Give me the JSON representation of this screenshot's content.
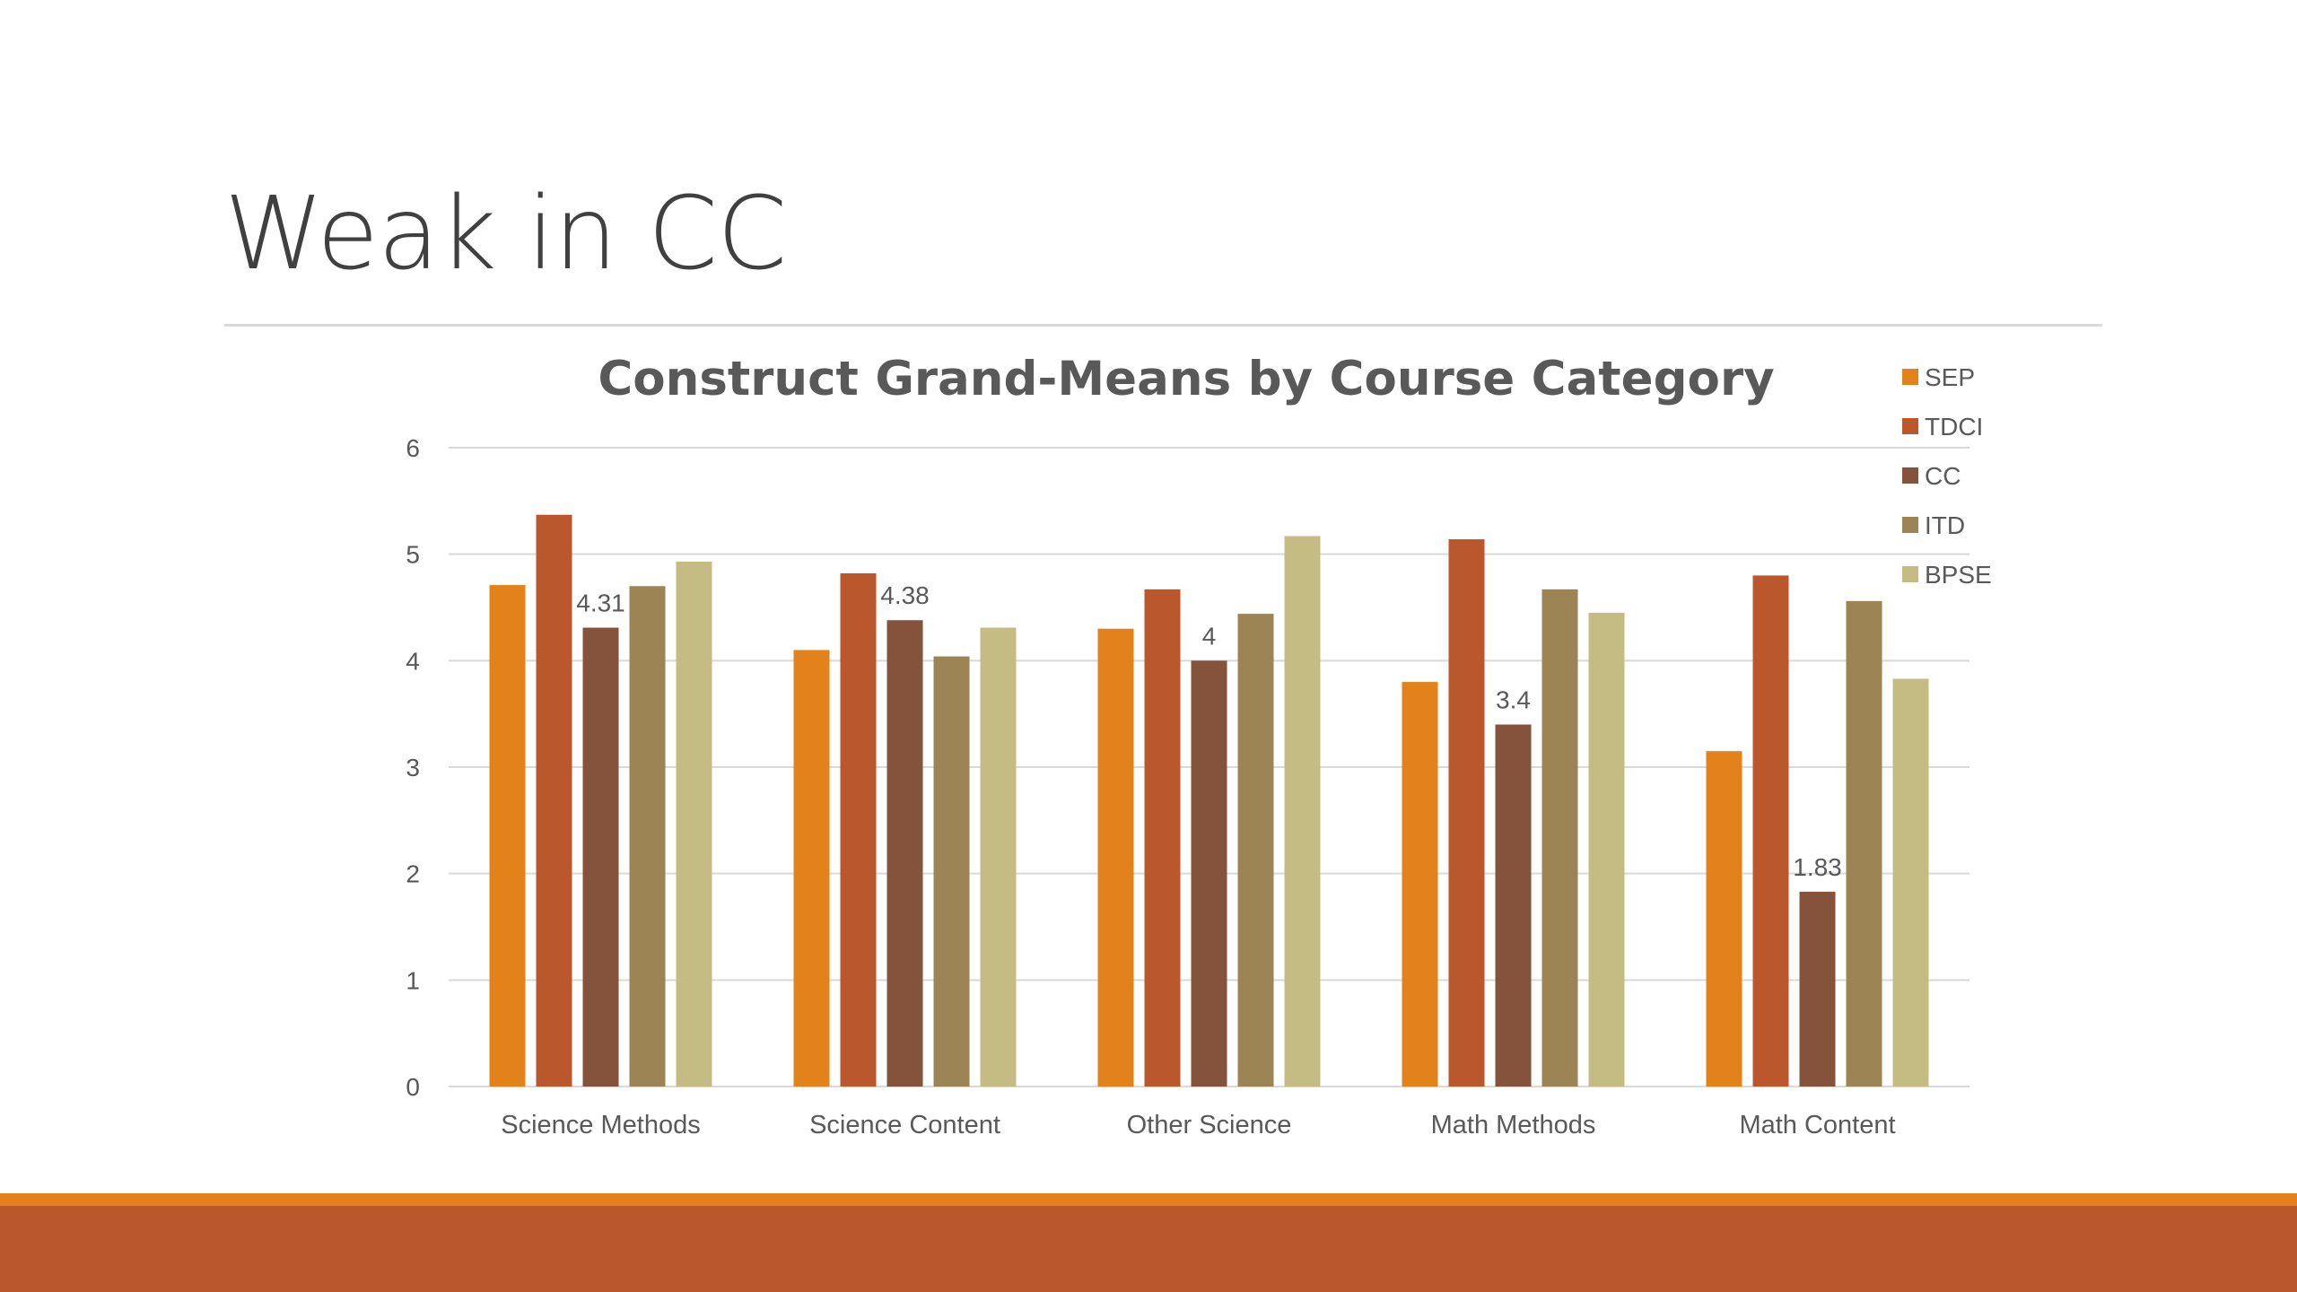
{
  "slide": {
    "title": "Weak in CC"
  },
  "colors": {
    "band_top": "#e3821b",
    "band_bottom": "#bb572c",
    "gridline": "#d9d9d9",
    "text": "#595959"
  },
  "chart_data": {
    "type": "bar",
    "title": "Construct Grand-Means by Course Category",
    "xlabel": "",
    "ylabel": "",
    "ylim": [
      0,
      6
    ],
    "yticks": [
      0,
      1,
      2,
      3,
      4,
      5,
      6
    ],
    "grid": true,
    "legend_position": "right",
    "categories": [
      "Science Methods",
      "Science Content",
      "Other Science",
      "Math Methods",
      "Math Content"
    ],
    "series": [
      {
        "name": "SEP",
        "color": "#e3821b",
        "values": [
          4.71,
          4.1,
          4.3,
          3.8,
          3.15
        ]
      },
      {
        "name": "TDCI",
        "color": "#bb572c",
        "values": [
          5.37,
          4.82,
          4.67,
          5.14,
          4.8
        ]
      },
      {
        "name": "CC",
        "color": "#85533c",
        "values": [
          4.31,
          4.38,
          4.0,
          3.4,
          1.83
        ],
        "data_labels": [
          "4.31",
          "4.38",
          "4",
          "3.4",
          "1.83"
        ]
      },
      {
        "name": "ITD",
        "color": "#9c8454",
        "values": [
          4.7,
          4.04,
          4.44,
          4.67,
          4.56
        ]
      },
      {
        "name": "BPSE",
        "color": "#c4bc82",
        "values": [
          4.93,
          4.31,
          5.17,
          4.45,
          3.83
        ]
      }
    ]
  }
}
